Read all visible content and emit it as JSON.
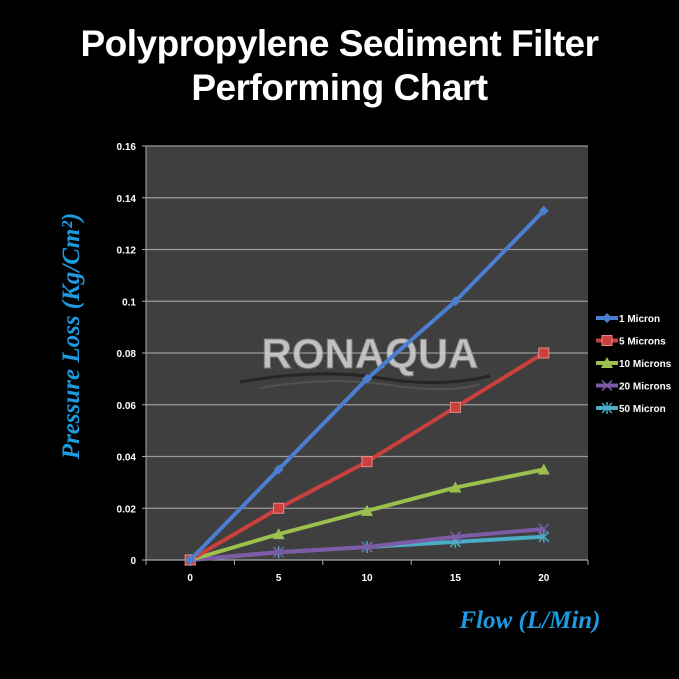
{
  "chart_data": {
    "type": "line",
    "title": "Polypropylene Sediment Filter Performing Chart",
    "title_lines": [
      "Polypropylene Sediment Filter",
      "Performing Chart"
    ],
    "xlabel": "Flow (L/Min)",
    "ylabel": "Pressure Loss (Kg/Cm²)",
    "categories": [
      "0",
      "5",
      "10",
      "15",
      "20"
    ],
    "ylim": [
      0,
      0.16
    ],
    "yticks": [
      "0",
      "0.02",
      "0.04",
      "0.06",
      "0.08",
      "0.1",
      "0.12",
      "0.14",
      "0.16"
    ],
    "grid": true,
    "legend_position": "right",
    "background": "#3f3f3f",
    "series": [
      {
        "name": "1 Micron",
        "values": [
          0,
          0.035,
          0.07,
          0.1,
          0.135
        ],
        "color": "#4a7fd0",
        "marker": "diamond"
      },
      {
        "name": "5 Microns",
        "values": [
          0,
          0.02,
          0.038,
          0.059,
          0.08
        ],
        "color": "#c9403c",
        "marker": "square"
      },
      {
        "name": "10 Microns",
        "values": [
          0,
          0.01,
          0.019,
          0.028,
          0.035
        ],
        "color": "#9bc04e",
        "marker": "triangle"
      },
      {
        "name": "20 Microns",
        "values": [
          0,
          0.003,
          0.005,
          0.009,
          0.012
        ],
        "color": "#7d5ba6",
        "marker": "x"
      },
      {
        "name": "50 Micron",
        "values": [
          0,
          0.003,
          0.005,
          0.007,
          0.009
        ],
        "color": "#4bacc6",
        "marker": "star"
      }
    ]
  },
  "logo": {
    "text": "RONAQUA"
  }
}
